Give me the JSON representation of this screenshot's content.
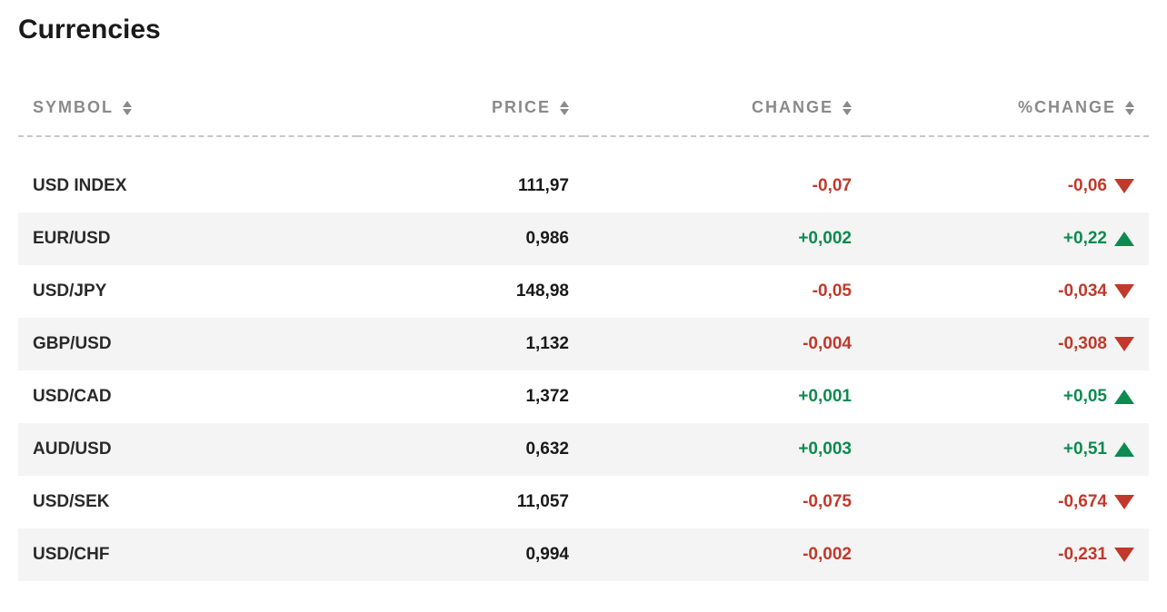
{
  "title": "Currencies",
  "colors": {
    "text": "#1a1a1a",
    "header_text": "#8a8a8a",
    "up": "#0d8a4f",
    "down": "#c0392b",
    "row_alt_bg": "#f4f4f4",
    "background": "#ffffff",
    "divider": "#c7c7c7"
  },
  "typography": {
    "title_fontsize": 30,
    "header_fontsize": 18,
    "header_letter_spacing": 2,
    "cell_fontsize": 19,
    "cell_fontweight": 700
  },
  "table": {
    "columns": [
      {
        "key": "symbol",
        "label": "SYMBOL",
        "align": "left",
        "sortable": true
      },
      {
        "key": "price",
        "label": "PRICE",
        "align": "right",
        "sortable": true
      },
      {
        "key": "change",
        "label": "CHANGE",
        "align": "right",
        "sortable": true
      },
      {
        "key": "pct_change",
        "label": "%CHANGE",
        "align": "right",
        "sortable": true
      }
    ],
    "rows": [
      {
        "symbol": "USD INDEX",
        "price": "111,97",
        "change": "-0,07",
        "pct_change": "-0,06",
        "direction": "down"
      },
      {
        "symbol": "EUR/USD",
        "price": "0,986",
        "change": "+0,002",
        "pct_change": "+0,22",
        "direction": "up"
      },
      {
        "symbol": "USD/JPY",
        "price": "148,98",
        "change": "-0,05",
        "pct_change": "-0,034",
        "direction": "down"
      },
      {
        "symbol": "GBP/USD",
        "price": "1,132",
        "change": "-0,004",
        "pct_change": "-0,308",
        "direction": "down"
      },
      {
        "symbol": "USD/CAD",
        "price": "1,372",
        "change": "+0,001",
        "pct_change": "+0,05",
        "direction": "up"
      },
      {
        "symbol": "AUD/USD",
        "price": "0,632",
        "change": "+0,003",
        "pct_change": "+0,51",
        "direction": "up"
      },
      {
        "symbol": "USD/SEK",
        "price": "11,057",
        "change": "-0,075",
        "pct_change": "-0,674",
        "direction": "down"
      },
      {
        "symbol": "USD/CHF",
        "price": "0,994",
        "change": "-0,002",
        "pct_change": "-0,231",
        "direction": "down"
      }
    ]
  }
}
